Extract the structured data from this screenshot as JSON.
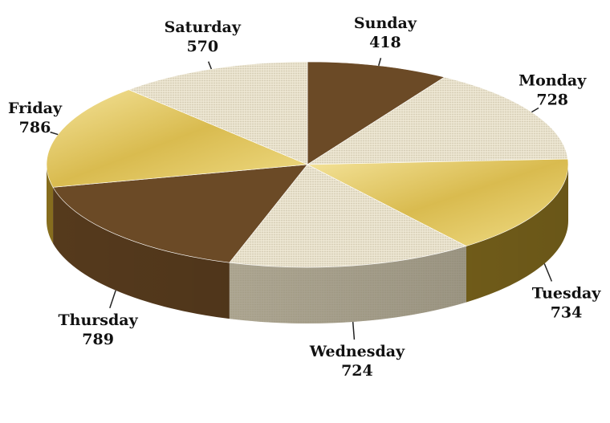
{
  "chart_data": {
    "type": "pie",
    "style": "3d",
    "categories": [
      "Sunday",
      "Monday",
      "Tuesday",
      "Wednesday",
      "Thursday",
      "Friday",
      "Saturday"
    ],
    "values": [
      418,
      728,
      734,
      724,
      789,
      786,
      570
    ],
    "value_labels": [
      "418",
      "728",
      "734",
      "724",
      "789",
      "786",
      "570"
    ],
    "legend": "none",
    "colors": [
      "#6b4a26",
      "#e6dfca",
      "#e6cd64",
      "#e2dac4",
      "#6b4a26",
      "#e6cd64",
      "#e6dfca"
    ],
    "side_colors": [
      "#5a3d1e",
      "#b7ae98",
      "#8d7320",
      "#b1a88f",
      "#5a3d1e",
      "#8d7320",
      "#b7ae98"
    ],
    "fills": [
      "solid",
      "linen",
      "gold",
      "linen",
      "solid",
      "gold",
      "linen"
    ]
  }
}
